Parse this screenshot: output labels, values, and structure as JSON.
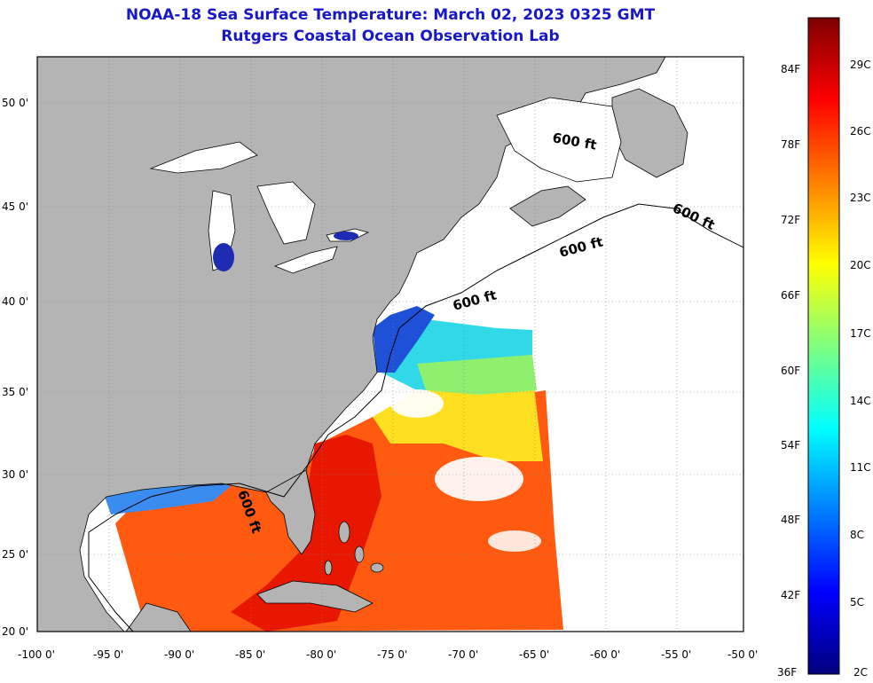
{
  "header": {
    "title": "NOAA-18 Sea Surface Temperature:  March 02, 2023 0325 GMT",
    "subtitle": "Rutgers Coastal Ocean Observation Lab"
  },
  "map": {
    "lat_labels": [
      "50 0'",
      "45 0'",
      "40 0'",
      "35 0'",
      "30 0'",
      "25 0'",
      "20 0'"
    ],
    "lon_labels": [
      "-100 0'",
      "-95 0'",
      "-90 0'",
      "-85 0'",
      "-80 0'",
      "-75 0'",
      "-70 0'",
      "-65 0'",
      "-60 0'",
      "-55 0'",
      "-50 0'"
    ],
    "contour_label": "600 ft",
    "colors": {
      "land": "#b4b4b4",
      "ocean_no_data": "#ffffff",
      "frame": "#000000",
      "lake_cold": "#1e2cb4"
    }
  },
  "colorbar": {
    "fahrenheit": [
      "84F",
      "78F",
      "72F",
      "66F",
      "60F",
      "54F",
      "48F",
      "42F",
      "36F"
    ],
    "celsius": [
      "29C",
      "26C",
      "23C",
      "20C",
      "17C",
      "14C",
      "11C",
      "8C",
      "5C",
      "2C"
    ],
    "colors": [
      "#00007f",
      "#0000ff",
      "#007fff",
      "#00ffff",
      "#7fff7f",
      "#ffff00",
      "#ff7f00",
      "#ff0000",
      "#7f0000"
    ]
  }
}
